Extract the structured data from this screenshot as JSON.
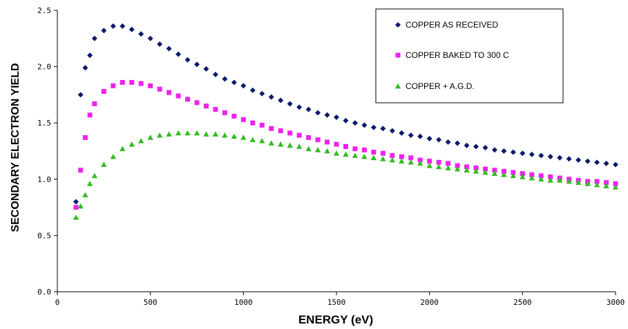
{
  "chart_data": {
    "type": "scatter",
    "title": "",
    "xlabel": "ENERGY (eV)",
    "ylabel": "SECONDARY ELECTRON YIELD",
    "xlim": [
      0,
      3000
    ],
    "ylim": [
      0.0,
      2.5
    ],
    "xticks": [
      "0",
      "500",
      "1000",
      "1500",
      "2000",
      "2500",
      "3000"
    ],
    "yticks": [
      "0.0",
      "0.5",
      "1.0",
      "1.5",
      "2.0",
      "2.5"
    ],
    "grid": false,
    "legend_position": "top-right",
    "series": [
      {
        "name": "COPPER AS RECEIVED",
        "marker": "diamond",
        "color": "#0b1a6b",
        "x": [
          100,
          125,
          150,
          175,
          200,
          250,
          300,
          350,
          400,
          450,
          500,
          550,
          600,
          650,
          700,
          750,
          800,
          850,
          900,
          950,
          1000,
          1050,
          1100,
          1150,
          1200,
          1250,
          1300,
          1350,
          1400,
          1450,
          1500,
          1550,
          1600,
          1650,
          1700,
          1750,
          1800,
          1850,
          1900,
          1950,
          2000,
          2050,
          2100,
          2150,
          2200,
          2250,
          2300,
          2350,
          2400,
          2450,
          2500,
          2550,
          2600,
          2650,
          2700,
          2750,
          2800,
          2850,
          2900,
          2950,
          3000
        ],
        "y": [
          0.8,
          1.75,
          1.99,
          2.1,
          2.25,
          2.32,
          2.36,
          2.36,
          2.33,
          2.29,
          2.25,
          2.2,
          2.16,
          2.11,
          2.06,
          2.02,
          1.98,
          1.93,
          1.89,
          1.86,
          1.83,
          1.79,
          1.76,
          1.73,
          1.7,
          1.67,
          1.64,
          1.62,
          1.59,
          1.57,
          1.55,
          1.52,
          1.5,
          1.48,
          1.46,
          1.45,
          1.43,
          1.41,
          1.39,
          1.38,
          1.36,
          1.35,
          1.33,
          1.32,
          1.3,
          1.29,
          1.28,
          1.26,
          1.25,
          1.24,
          1.23,
          1.22,
          1.21,
          1.2,
          1.19,
          1.18,
          1.17,
          1.16,
          1.15,
          1.14,
          1.13
        ]
      },
      {
        "name": "COPPER BAKED TO 300 C",
        "marker": "square",
        "color": "#ee22ee",
        "x": [
          100,
          125,
          150,
          175,
          200,
          250,
          300,
          350,
          400,
          450,
          500,
          550,
          600,
          650,
          700,
          750,
          800,
          850,
          900,
          950,
          1000,
          1050,
          1100,
          1150,
          1200,
          1250,
          1300,
          1350,
          1400,
          1450,
          1500,
          1550,
          1600,
          1650,
          1700,
          1750,
          1800,
          1850,
          1900,
          1950,
          2000,
          2050,
          2100,
          2150,
          2200,
          2250,
          2300,
          2350,
          2400,
          2450,
          2500,
          2550,
          2600,
          2650,
          2700,
          2750,
          2800,
          2850,
          2900,
          2950,
          3000
        ],
        "y": [
          0.75,
          1.08,
          1.37,
          1.57,
          1.67,
          1.78,
          1.83,
          1.86,
          1.86,
          1.85,
          1.83,
          1.8,
          1.77,
          1.74,
          1.71,
          1.68,
          1.65,
          1.62,
          1.59,
          1.56,
          1.53,
          1.5,
          1.48,
          1.45,
          1.43,
          1.41,
          1.39,
          1.37,
          1.35,
          1.33,
          1.31,
          1.29,
          1.27,
          1.26,
          1.24,
          1.23,
          1.21,
          1.2,
          1.19,
          1.17,
          1.16,
          1.15,
          1.14,
          1.12,
          1.11,
          1.1,
          1.09,
          1.08,
          1.07,
          1.06,
          1.05,
          1.04,
          1.03,
          1.02,
          1.01,
          1.0,
          0.99,
          0.98,
          0.98,
          0.97,
          0.96
        ]
      },
      {
        "name": "COPPER + A.G.D.",
        "marker": "triangle",
        "color": "#33bb22",
        "x": [
          100,
          125,
          150,
          175,
          200,
          250,
          300,
          350,
          400,
          450,
          500,
          550,
          600,
          650,
          700,
          750,
          800,
          850,
          900,
          950,
          1000,
          1050,
          1100,
          1150,
          1200,
          1250,
          1300,
          1350,
          1400,
          1450,
          1500,
          1550,
          1600,
          1650,
          1700,
          1750,
          1800,
          1850,
          1900,
          1950,
          2000,
          2050,
          2100,
          2150,
          2200,
          2250,
          2300,
          2350,
          2400,
          2450,
          2500,
          2550,
          2600,
          2650,
          2700,
          2750,
          2800,
          2850,
          2900,
          2950,
          3000
        ],
        "y": [
          0.66,
          0.76,
          0.86,
          0.96,
          1.03,
          1.13,
          1.2,
          1.27,
          1.31,
          1.34,
          1.37,
          1.39,
          1.4,
          1.41,
          1.41,
          1.41,
          1.4,
          1.4,
          1.39,
          1.38,
          1.37,
          1.35,
          1.34,
          1.32,
          1.31,
          1.3,
          1.29,
          1.27,
          1.26,
          1.25,
          1.23,
          1.22,
          1.21,
          1.2,
          1.19,
          1.18,
          1.17,
          1.16,
          1.15,
          1.14,
          1.12,
          1.11,
          1.1,
          1.09,
          1.08,
          1.07,
          1.06,
          1.05,
          1.04,
          1.03,
          1.02,
          1.01,
          1.0,
          0.99,
          0.99,
          0.98,
          0.97,
          0.96,
          0.95,
          0.94,
          0.93
        ]
      }
    ]
  }
}
